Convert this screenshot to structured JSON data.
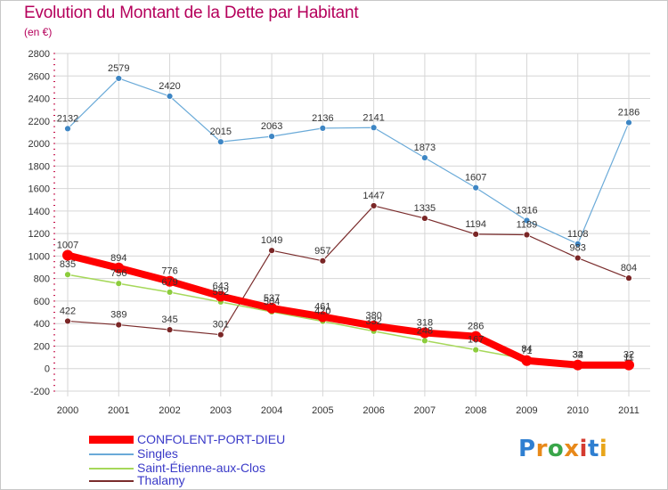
{
  "header": {
    "title": "Evolution du Montant de la Dette par Habitant",
    "subtitle": "(en €)"
  },
  "brand": {
    "logo": "Proxiti"
  },
  "chart_data": {
    "type": "line",
    "title": "Evolution du Montant de la Dette par Habitant",
    "subtitle": "(en €)",
    "xlabel": "",
    "ylabel": "",
    "x": [
      "2000",
      "2001",
      "2002",
      "2003",
      "2004",
      "2005",
      "2006",
      "2007",
      "2008",
      "2009",
      "2010",
      "2011"
    ],
    "ylim": [
      -200,
      2800
    ],
    "yticks": [
      "2800",
      "2600",
      "2400",
      "2200",
      "2000",
      "1800",
      "1600",
      "1400",
      "1200",
      "1000",
      "800",
      "600",
      "400",
      "200",
      "0",
      "-200"
    ],
    "grid": true,
    "legend_position": "bottom-left",
    "series": [
      {
        "name": "CONFOLENT-PORT-DIEU",
        "color": "#ff0000",
        "marker": "#ff0000",
        "values": [
          1007,
          894,
          776,
          643,
          537,
          461,
          380,
          318,
          286,
          71,
          32,
          32
        ],
        "labels": [
          "1007",
          "894",
          "776",
          "643",
          "537",
          "461",
          "380",
          "318",
          "286",
          "71",
          "32",
          "32"
        ]
      },
      {
        "name": "Singles",
        "color": "#6aaad8",
        "marker": "#3e86c4",
        "values": [
          2132,
          2579,
          2420,
          2015,
          2063,
          2136,
          2141,
          1873,
          1607,
          1316,
          1108,
          2186
        ],
        "labels": [
          "2132",
          "2579",
          "2420",
          "2015",
          "2063",
          "2136",
          "2141",
          "1873",
          "1607",
          "1316",
          "1108",
          "2186"
        ]
      },
      {
        "name": "Saint-Étienne-aux-Clos",
        "color": "#a6d85a",
        "marker": "#8ccc3c",
        "values": [
          835,
          756,
          679,
          592,
          504,
          420,
          332,
          248,
          167,
          84,
          34,
          11
        ],
        "labels": [
          "835",
          "756",
          "679",
          "592",
          "504",
          "420",
          "332",
          "248",
          "167",
          "84",
          "34",
          "11"
        ]
      },
      {
        "name": "Thalamy",
        "color": "#7a2c2c",
        "marker": "#7a2626",
        "values": [
          422,
          389,
          345,
          301,
          1049,
          957,
          1447,
          1335,
          1194,
          1189,
          983,
          804
        ],
        "labels": [
          "422",
          "389",
          "345",
          "301",
          "1049",
          "957",
          "1447",
          "1335",
          "1194",
          "1189",
          "983",
          "804"
        ]
      }
    ]
  }
}
